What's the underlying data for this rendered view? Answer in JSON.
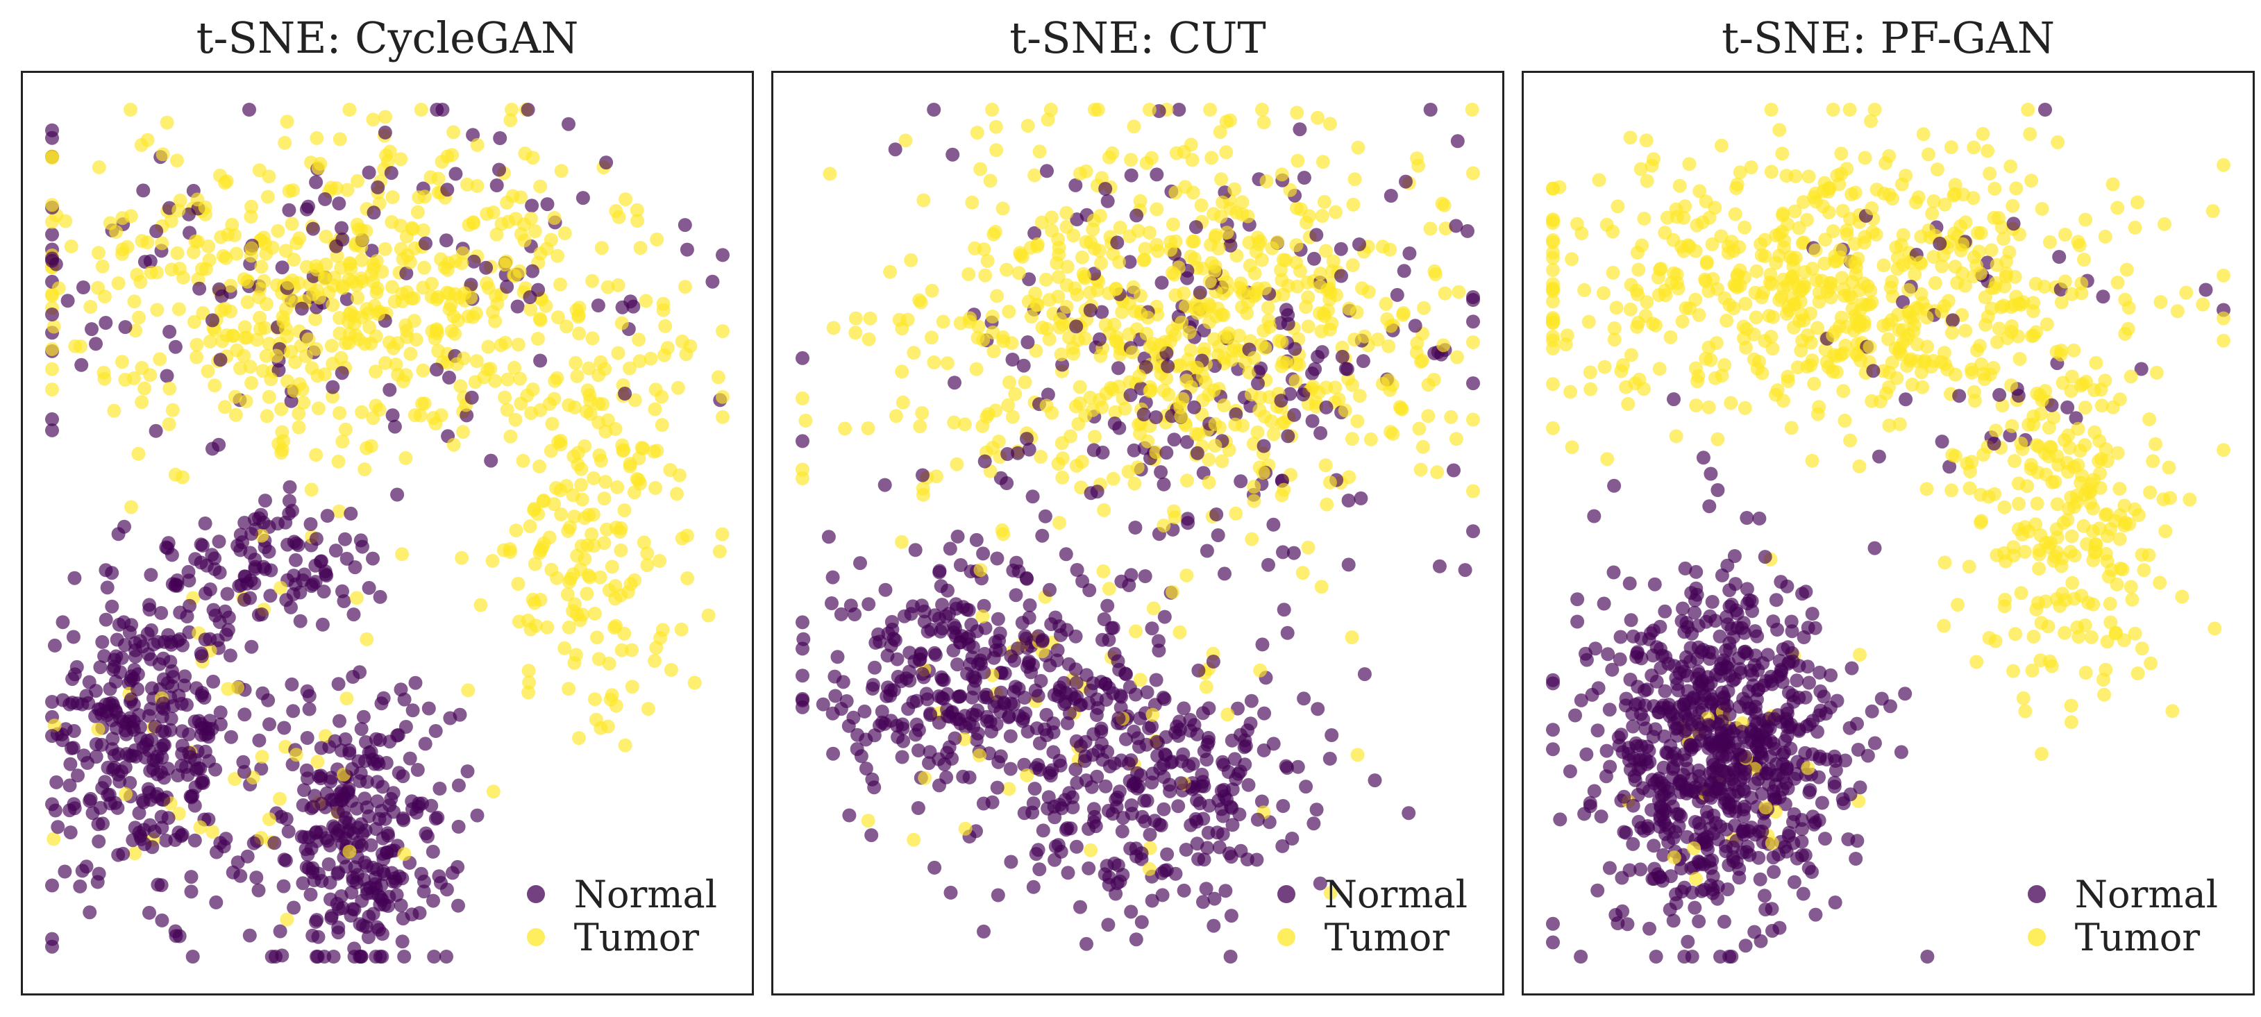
{
  "colors": {
    "normal": "#440154",
    "tumor": "#fde725"
  },
  "chart_data": [
    {
      "type": "scatter",
      "title": "t-SNE: CycleGAN",
      "xlabel": "",
      "ylabel": "",
      "xlim": [
        0,
        100
      ],
      "ylim": [
        0,
        100
      ],
      "grid": false,
      "legend": {
        "placement": "bottom-right",
        "entries": [
          "Normal",
          "Tumor"
        ]
      },
      "series": [
        {
          "name": "Normal",
          "color": "#440154",
          "clusters": [
            {
              "cx": 17,
              "cy": 28,
              "sx": 9,
              "sy": 10,
              "n": 340
            },
            {
              "cx": 46,
              "cy": 17,
              "sx": 8,
              "sy": 10,
              "n": 300
            },
            {
              "cx": 35,
              "cy": 47,
              "sx": 9,
              "sy": 5,
              "n": 110
            },
            {
              "cx": 44,
              "cy": 78,
              "sx": 30,
              "sy": 12,
              "n": 150
            }
          ]
        },
        {
          "name": "Tumor",
          "color": "#fde725",
          "clusters": [
            {
              "cx": 46,
              "cy": 76,
              "sx": 27,
              "sy": 11,
              "n": 560
            },
            {
              "cx": 78,
              "cy": 50,
              "sx": 9,
              "sy": 13,
              "n": 200
            },
            {
              "cx": 30,
              "cy": 28,
              "sx": 18,
              "sy": 14,
              "n": 45
            }
          ]
        }
      ]
    },
    {
      "type": "scatter",
      "title": "t-SNE: CUT",
      "xlabel": "",
      "ylabel": "",
      "xlim": [
        0,
        100
      ],
      "ylim": [
        0,
        100
      ],
      "grid": false,
      "legend": {
        "placement": "bottom-right",
        "entries": [
          "Normal",
          "Tumor"
        ]
      },
      "series": [
        {
          "name": "Normal",
          "color": "#440154",
          "clusters": [
            {
              "cx": 27,
              "cy": 35,
              "sx": 14,
              "sy": 8,
              "n": 330
            },
            {
              "cx": 52,
              "cy": 22,
              "sx": 14,
              "sy": 9,
              "n": 300
            },
            {
              "cx": 60,
              "cy": 68,
              "sx": 22,
              "sy": 16,
              "n": 230
            }
          ]
        },
        {
          "name": "Tumor",
          "color": "#fde725",
          "clusters": [
            {
              "cx": 55,
              "cy": 72,
              "sx": 24,
              "sy": 13,
              "n": 650
            },
            {
              "cx": 45,
              "cy": 32,
              "sx": 20,
              "sy": 12,
              "n": 55
            }
          ]
        }
      ]
    },
    {
      "type": "scatter",
      "title": "t-SNE: PF-GAN",
      "xlabel": "",
      "ylabel": "",
      "xlim": [
        0,
        100
      ],
      "ylim": [
        0,
        100
      ],
      "grid": false,
      "legend": {
        "placement": "bottom-right",
        "entries": [
          "Normal",
          "Tumor"
        ]
      },
      "series": [
        {
          "name": "Normal",
          "color": "#440154",
          "clusters": [
            {
              "cx": 27,
              "cy": 26,
              "sx": 11,
              "sy": 12,
              "n": 780
            },
            {
              "cx": 60,
              "cy": 70,
              "sx": 22,
              "sy": 12,
              "n": 45
            }
          ]
        },
        {
          "name": "Tumor",
          "color": "#fde725",
          "clusters": [
            {
              "cx": 42,
              "cy": 77,
              "sx": 26,
              "sy": 10,
              "n": 620
            },
            {
              "cx": 75,
              "cy": 50,
              "sx": 9,
              "sy": 12,
              "n": 230
            },
            {
              "cx": 30,
              "cy": 25,
              "sx": 10,
              "sy": 10,
              "n": 25
            }
          ]
        }
      ]
    }
  ]
}
